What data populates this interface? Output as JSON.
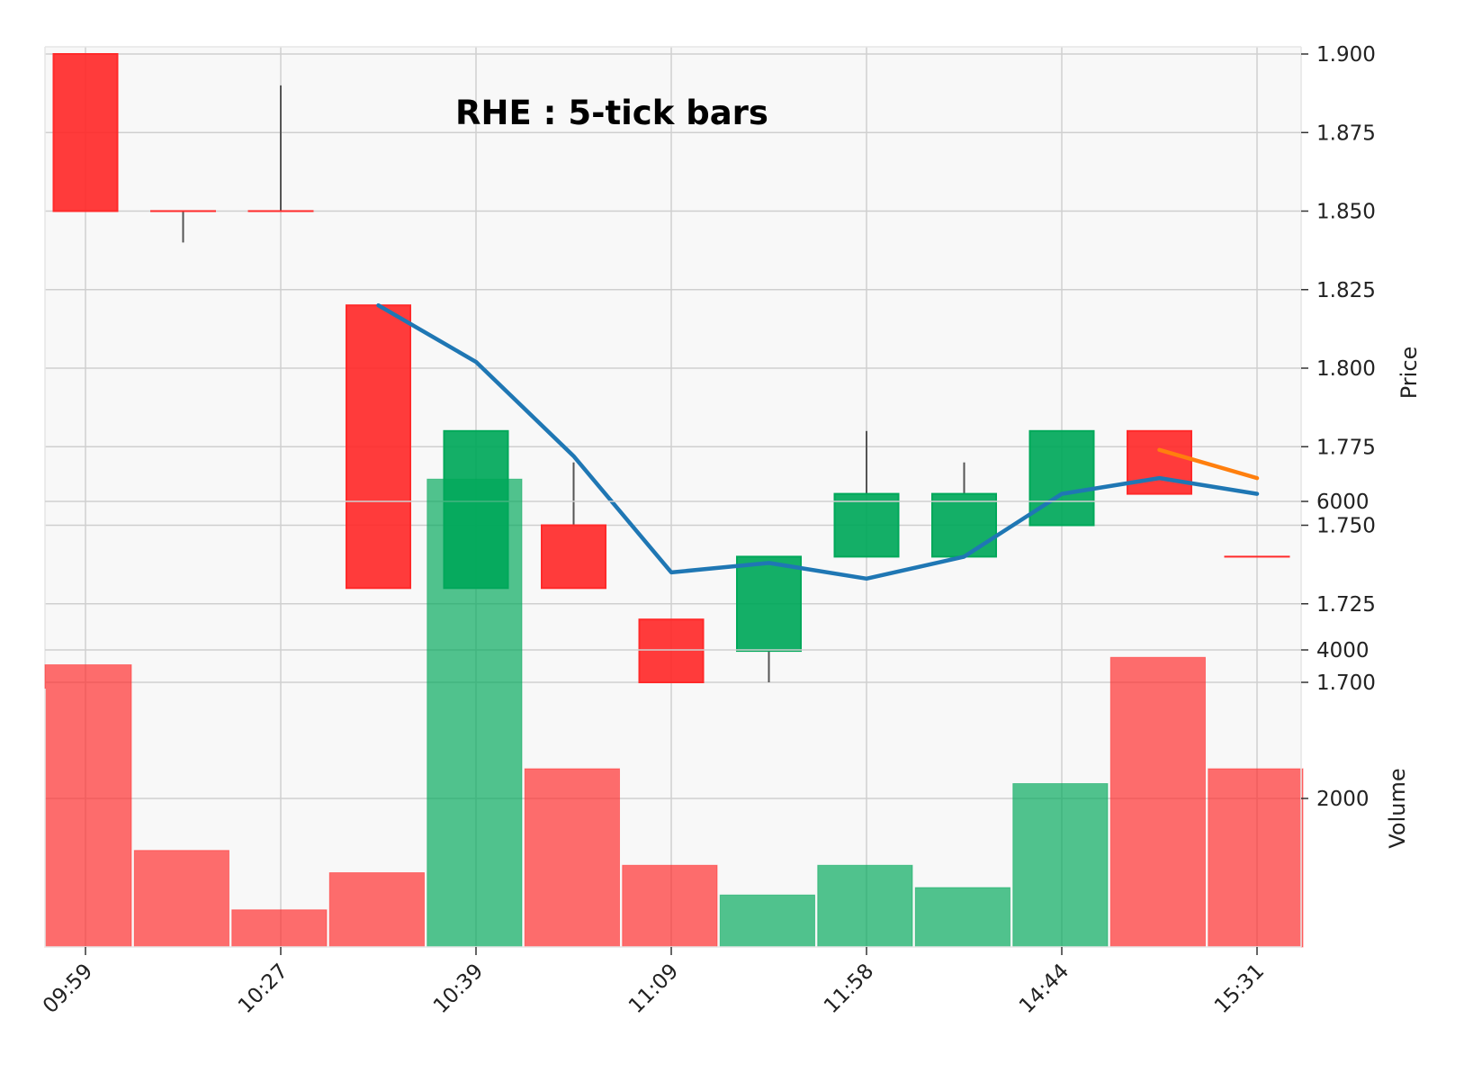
{
  "chart_data": {
    "type": "candlestick",
    "title": "RHE : 5-tick bars",
    "ylabel": "Price",
    "ylabel_lower": "Volume",
    "ylim": [
      1.7,
      1.9
    ],
    "volume_ylim": [
      0,
      6500
    ],
    "price_ticks": [
      "1.700",
      "1.725",
      "1.750",
      "1.775",
      "1.800",
      "1.825",
      "1.850",
      "1.875",
      "1.900"
    ],
    "volume_ticks": [
      "2000",
      "4000",
      "6000"
    ],
    "x_ticks": [
      {
        "index": 0,
        "label": "09:59"
      },
      {
        "index": 2,
        "label": "10:27"
      },
      {
        "index": 4,
        "label": "10:39"
      },
      {
        "index": 6,
        "label": "11:09"
      },
      {
        "index": 8,
        "label": "11:58"
      },
      {
        "index": 10,
        "label": "14:44"
      },
      {
        "index": 12,
        "label": "15:31"
      }
    ],
    "candles": [
      {
        "open": 1.9,
        "high": 1.9,
        "low": 1.85,
        "close": 1.85,
        "volume": 3800
      },
      {
        "open": 1.85,
        "high": 1.85,
        "low": 1.84,
        "close": 1.85,
        "volume": 1300
      },
      {
        "open": 1.85,
        "high": 1.89,
        "low": 1.85,
        "close": 1.85,
        "volume": 500
      },
      {
        "open": 1.82,
        "high": 1.82,
        "low": 1.73,
        "close": 1.73,
        "volume": 1000
      },
      {
        "open": 1.73,
        "high": 1.78,
        "low": 1.73,
        "close": 1.78,
        "volume": 6300
      },
      {
        "open": 1.75,
        "high": 1.77,
        "low": 1.73,
        "close": 1.73,
        "volume": 2400
      },
      {
        "open": 1.72,
        "high": 1.72,
        "low": 1.7,
        "close": 1.7,
        "volume": 1100
      },
      {
        "open": 1.71,
        "high": 1.74,
        "low": 1.7,
        "close": 1.74,
        "volume": 700
      },
      {
        "open": 1.74,
        "high": 1.78,
        "low": 1.74,
        "close": 1.76,
        "volume": 1100
      },
      {
        "open": 1.74,
        "high": 1.77,
        "low": 1.74,
        "close": 1.76,
        "volume": 800
      },
      {
        "open": 1.75,
        "high": 1.78,
        "low": 1.75,
        "close": 1.78,
        "volume": 2200
      },
      {
        "open": 1.78,
        "high": 1.78,
        "low": 1.76,
        "close": 1.76,
        "volume": 3900
      },
      {
        "open": 1.74,
        "high": 1.74,
        "low": 1.74,
        "close": 1.74,
        "volume": 2400
      }
    ],
    "moving_averages": [
      {
        "color": "#1f77b4",
        "values": [
          null,
          null,
          null,
          1.82,
          1.802,
          1.772,
          1.735,
          1.738,
          1.733,
          1.74,
          1.76,
          1.765,
          1.76
        ]
      },
      {
        "color": "#ff7f0e",
        "values": [
          null,
          null,
          null,
          null,
          null,
          null,
          null,
          null,
          null,
          null,
          null,
          1.774,
          1.765
        ]
      }
    ],
    "colors": {
      "up": "#00a85a",
      "down": "#ff2a2a",
      "wick": "#555555",
      "panel_bg": "#f8f8f8",
      "grid": "#cfcfcf"
    },
    "grid": true
  }
}
